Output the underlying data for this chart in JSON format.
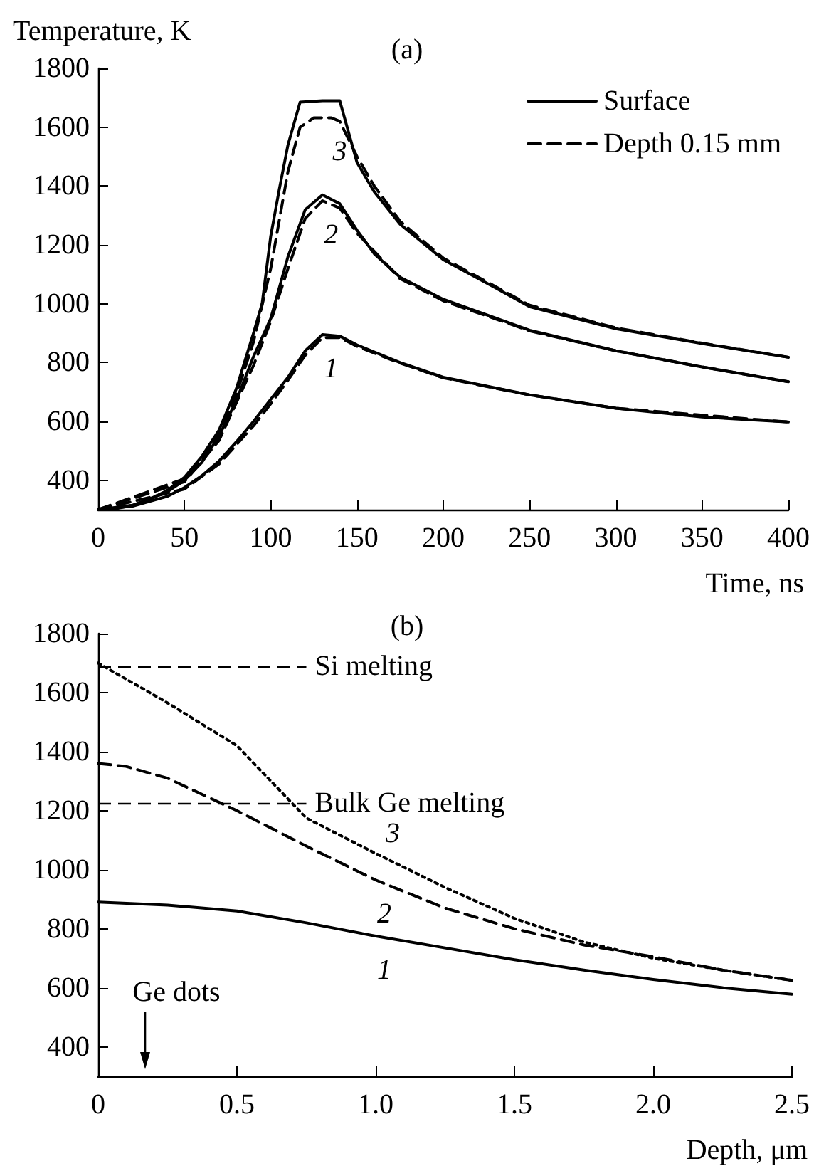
{
  "chart_data": [
    {
      "type": "line",
      "title": "(a)",
      "xlabel": "Time, ns",
      "ylabel": "Temperature, K",
      "xlim": [
        0,
        400
      ],
      "ylim": [
        300,
        1800
      ],
      "xticks": [
        0,
        50,
        100,
        150,
        200,
        250,
        300,
        350,
        400
      ],
      "yticks": [
        {
          "value": 300,
          "label": null
        },
        400,
        600,
        800,
        1000,
        1200,
        1400,
        1600,
        1800
      ],
      "grid": false,
      "legend": "top right",
      "marker": "none",
      "series": [
        {
          "name": "Surface",
          "color": "#000000",
          "line_style": "solid",
          "x": [
            0,
            10,
            20,
            30,
            40,
            50,
            60,
            70,
            80,
            90,
            95,
            100,
            105,
            110,
            117,
            130,
            140,
            150,
            160,
            175,
            200,
            230,
            250,
            300,
            350,
            400
          ],
          "values": [
            300,
            303,
            315,
            335,
            365,
            410,
            480,
            570,
            710,
            900,
            1000,
            1230,
            1390,
            1540,
            1685,
            1690,
            1690,
            1480,
            1380,
            1270,
            1150,
            1055,
            990,
            915,
            865,
            818
          ]
        },
        {
          "name": "Depth 0.15 mm",
          "color": "#000000",
          "line_style": "dashed",
          "x": [
            0,
            50,
            60,
            70,
            80,
            90,
            100,
            110,
            117,
            125,
            135,
            140,
            150,
            160,
            175,
            200,
            250,
            300,
            350,
            400
          ],
          "values": [
            300,
            405,
            470,
            555,
            690,
            870,
            1120,
            1450,
            1600,
            1632,
            1632,
            1620,
            1500,
            1400,
            1280,
            1155,
            995,
            918,
            866,
            818
          ]
        },
        {
          "color": "#000000",
          "line_style": "solid",
          "x": [
            0,
            20,
            40,
            50,
            60,
            70,
            80,
            90,
            100,
            110,
            120,
            130,
            140,
            150,
            160,
            175,
            200,
            250,
            300,
            350,
            400
          ],
          "values": [
            300,
            315,
            360,
            400,
            460,
            550,
            670,
            820,
            950,
            1160,
            1320,
            1370,
            1340,
            1250,
            1170,
            1090,
            1015,
            910,
            840,
            785,
            735
          ]
        },
        {
          "color": "#000000",
          "line_style": "dashed",
          "x": [
            0,
            50,
            70,
            90,
            100,
            110,
            120,
            130,
            140,
            150,
            175,
            200,
            250,
            300,
            350,
            400
          ],
          "values": [
            300,
            395,
            535,
            790,
            940,
            1120,
            1290,
            1350,
            1325,
            1240,
            1085,
            1010,
            908,
            840,
            785,
            735
          ]
        },
        {
          "color": "#000000",
          "line_style": "solid",
          "x": [
            0,
            20,
            40,
            50,
            60,
            70,
            80,
            90,
            100,
            110,
            120,
            130,
            140,
            150,
            175,
            200,
            250,
            300,
            350,
            400
          ],
          "values": [
            300,
            312,
            345,
            375,
            415,
            465,
            530,
            600,
            675,
            750,
            840,
            895,
            890,
            860,
            800,
            750,
            690,
            645,
            615,
            598
          ]
        },
        {
          "color": "#000000",
          "line_style": "dashed",
          "x": [
            0,
            50,
            70,
            90,
            100,
            110,
            120,
            130,
            140,
            150,
            175,
            200,
            250,
            300,
            400
          ],
          "values": [
            300,
            370,
            455,
            585,
            660,
            740,
            825,
            885,
            885,
            855,
            798,
            748,
            690,
            645,
            598
          ]
        }
      ],
      "annotations": [
        {
          "text": "3",
          "x": 135,
          "y": 1632
        },
        {
          "text": "2",
          "x": 130,
          "y": 1350
        },
        {
          "text": "1",
          "x": 130,
          "y": 895
        }
      ]
    },
    {
      "type": "line",
      "title": "(b)",
      "xlabel": "Depth, μm",
      "xlim": [
        0,
        2.5
      ],
      "ylim": [
        300,
        1800
      ],
      "xticks": [
        0,
        0.5,
        {
          "value": 1,
          "label": "1.0"
        },
        1.5,
        {
          "value": 2,
          "label": "2.0"
        },
        2.5
      ],
      "yticks": [
        {
          "value": 300,
          "label": null
        },
        400,
        600,
        800,
        1000,
        1200,
        1400,
        1600,
        1800
      ],
      "grid": false,
      "marker": "none",
      "series": [
        {
          "color": "#000000",
          "line_style": "solid",
          "x": [
            0,
            0.25,
            0.5,
            0.75,
            1.0,
            1.25,
            1.5,
            1.75,
            2.0,
            2.25,
            2.5
          ],
          "values": [
            890,
            880,
            860,
            820,
            775,
            735,
            695,
            660,
            628,
            600,
            578
          ]
        },
        {
          "color": "#000000",
          "line_style": "dashed",
          "x": [
            0,
            0.1,
            0.25,
            0.5,
            0.75,
            1.0,
            1.25,
            1.5,
            1.75,
            2.0,
            2.25,
            2.5
          ],
          "values": [
            1360,
            1350,
            1310,
            1200,
            1080,
            965,
            870,
            800,
            745,
            705,
            660,
            625
          ]
        },
        {
          "color": "#000000",
          "line_style": "dotted",
          "x": [
            0,
            0.25,
            0.5,
            0.75,
            1.0,
            1.25,
            1.5,
            1.75,
            2.0,
            2.25,
            2.5
          ],
          "values": [
            1700,
            1565,
            1420,
            1175,
            1055,
            940,
            835,
            755,
            700,
            660,
            625
          ]
        }
      ],
      "ref_lines": [
        {
          "axis": "y",
          "value": 1690,
          "label": "Si melting",
          "line_style": "dashed",
          "color": "#000000"
        },
        {
          "axis": "y",
          "value": 1225,
          "label": "Bulk Ge melting",
          "line_style": "dashed",
          "color": "#000000"
        }
      ],
      "annotations": [
        {
          "text": "3",
          "x": 1.0,
          "y": 1055
        },
        {
          "text": "2",
          "x": 1.0,
          "y": 965
        },
        {
          "text": "1",
          "x": 1.0,
          "y": 775
        },
        "Ge dots"
      ]
    }
  ]
}
